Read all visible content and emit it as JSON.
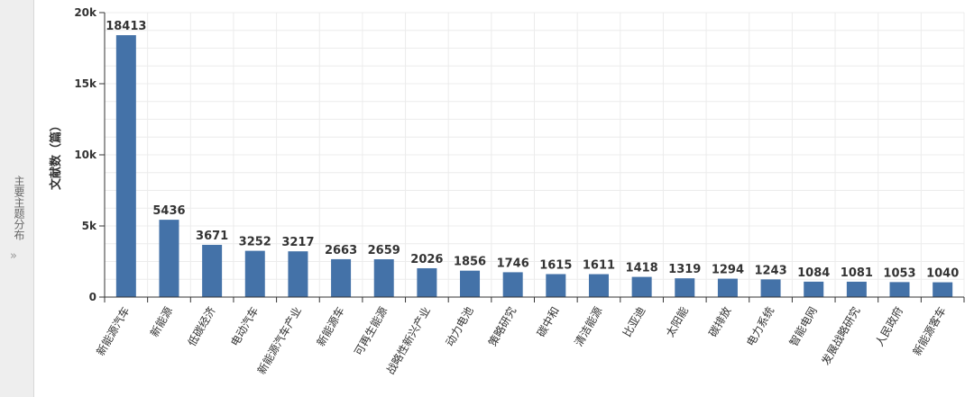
{
  "side_panel": {
    "label": "主要主题分布",
    "expand_icon": "double-chevron-right-icon"
  },
  "chart_data": {
    "type": "bar",
    "ylabel": "文献数（篇）",
    "ylim": [
      0,
      20000
    ],
    "yticks": [
      0,
      5000,
      10000,
      15000,
      20000
    ],
    "ytick_labels": [
      "0",
      "5k",
      "10k",
      "15k",
      "20k"
    ],
    "grid": true,
    "bar_color": "#4472a8",
    "categories": [
      "新能源汽车",
      "新能源",
      "低碳经济",
      "电动汽车",
      "新能源汽车产业",
      "新能源车",
      "可再生能源",
      "战略性新兴产业",
      "动力电池",
      "策略研究",
      "碳中和",
      "清洁能源",
      "比亚迪",
      "太阳能",
      "碳排放",
      "电力系统",
      "智能电网",
      "发展战略研究",
      "人民政府",
      "新能源客车"
    ],
    "values": [
      18413,
      5436,
      3671,
      3252,
      3217,
      2663,
      2659,
      2026,
      1856,
      1746,
      1615,
      1611,
      1418,
      1319,
      1294,
      1243,
      1084,
      1081,
      1053,
      1040
    ]
  }
}
